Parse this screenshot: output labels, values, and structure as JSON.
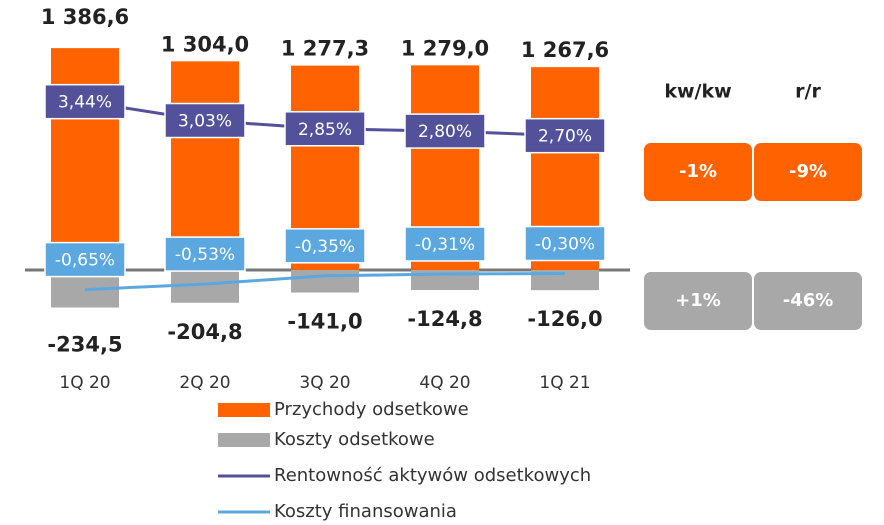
{
  "chart_data": {
    "type": "bar",
    "categories": [
      "1Q 20",
      "2Q 20",
      "3Q 20",
      "4Q 20",
      "1Q 21"
    ],
    "ylim": [
      -625,
      1500
    ],
    "y2lim": [
      -2.4,
      5
    ],
    "series": [
      {
        "name": "Przychody odsetkowe",
        "color": "#ff6200",
        "type": "bar",
        "values": [
          1386.6,
          1304.0,
          1277.3,
          1279.0,
          1267.6
        ],
        "value_labels": [
          "1 386,6",
          "1 304,0",
          "1 277,3",
          "1 279,0",
          "1 267,6"
        ]
      },
      {
        "name": "Koszty odsetkowe",
        "color": "#a8a8a8",
        "type": "bar",
        "values": [
          -234.5,
          -204.8,
          -141.0,
          -124.8,
          -126.0
        ],
        "value_labels": [
          "-234,5",
          "-204,8",
          "-141,0",
          "-124,8",
          "-126,0"
        ]
      },
      {
        "name": "Rentowność aktywów odsetkowych",
        "color": "#525199",
        "type": "line",
        "axis": "y2",
        "values": [
          3.44,
          3.03,
          2.85,
          2.8,
          2.7
        ],
        "value_labels": [
          "3,44%",
          "3,03%",
          "2,85%",
          "2,80%",
          "2,70%"
        ]
      },
      {
        "name": "Koszty finansowania",
        "color": "#5ba8e0",
        "type": "line",
        "axis": "y2",
        "values": [
          -0.65,
          -0.53,
          -0.35,
          -0.31,
          -0.3
        ],
        "value_labels": [
          "-0,65%",
          "-0,53%",
          "-0,35%",
          "-0,31%",
          "-0,30%"
        ]
      }
    ]
  },
  "change_table": {
    "headers": [
      "kw/kw",
      "r/r"
    ],
    "rows": [
      [
        "-1%",
        "-9%"
      ],
      [
        "+1%",
        "-46%"
      ]
    ]
  }
}
